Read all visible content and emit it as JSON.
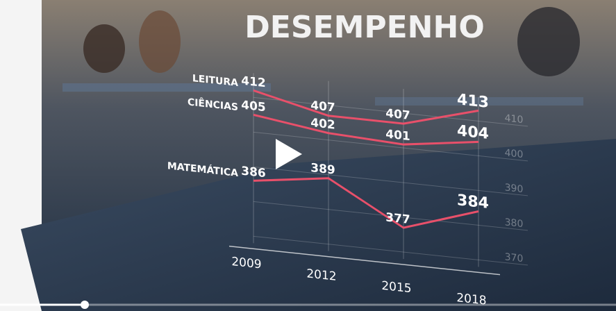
{
  "chart_data": {
    "type": "line",
    "title": "DESEMPENHO",
    "categories": [
      "2009",
      "2012",
      "2015",
      "2018"
    ],
    "series": [
      {
        "name": "LEITURA",
        "color": "#e8506a",
        "values": [
          412,
          407,
          407,
          413
        ]
      },
      {
        "name": "CIÊNCIAS",
        "color": "#e8506a",
        "values": [
          405,
          402,
          401,
          404
        ]
      },
      {
        "name": "MATEMÁTICA",
        "color": "#e8506a",
        "values": [
          386,
          389,
          377,
          384
        ]
      }
    ],
    "ylim": [
      370,
      415
    ],
    "yticks": [
      370,
      380,
      390,
      400,
      410
    ],
    "grid": true
  }
}
